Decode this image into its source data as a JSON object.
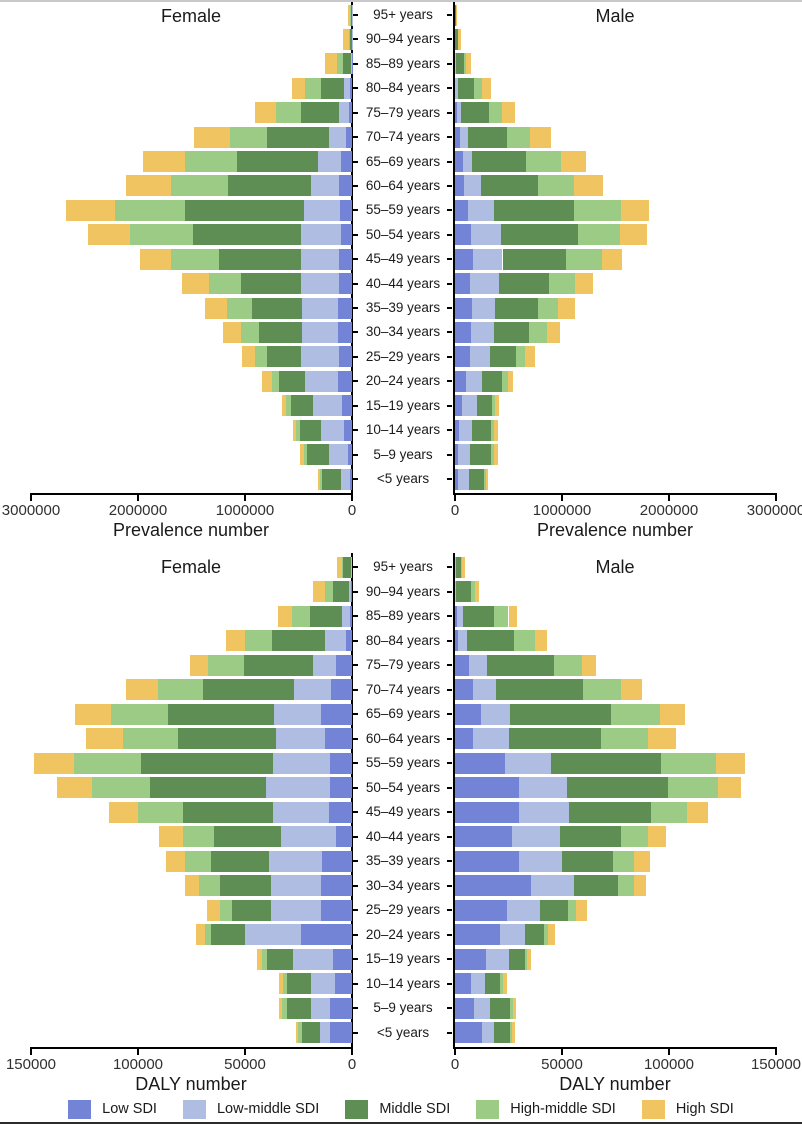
{
  "figure": {
    "top_border_color": "#c9c9c9",
    "bottom_border_color": "#2b2b2b",
    "panel_titles": {
      "left": "Female",
      "right": "Male"
    },
    "legend": [
      {
        "label": "Low SDI",
        "color": "#7384D7"
      },
      {
        "label": "Low-middle SDI",
        "color": "#AFBDE3"
      },
      {
        "label": "Middle SDI",
        "color": "#5F8E55"
      },
      {
        "label": "High-middle SDI",
        "color": "#9BCB85"
      },
      {
        "label": "High SDI",
        "color": "#F0C561"
      }
    ],
    "age_groups": [
      "95+ years",
      "90–94 years",
      "85–89 years",
      "80–84 years",
      "75–79 years",
      "70–74 years",
      "65–69 years",
      "60–64 years",
      "55–59 years",
      "50–54 years",
      "45–49 years",
      "40–44 years",
      "35–39 years",
      "30–34 years",
      "25–29 years",
      "20–24 years",
      "15–19 years",
      "10–14 years",
      "5–9 years",
      "<5 years"
    ]
  },
  "chart_data": [
    {
      "type": "bar",
      "subtype": "population-pyramid-stacked",
      "xlabel": "Prevalence number",
      "xlim": [
        0,
        3000000
      ],
      "axis_ticks": [
        0,
        1000000,
        2000000,
        3000000
      ],
      "axis_tick_labels": [
        "0",
        "1000000",
        "2000000",
        "3000000"
      ],
      "legend_position": "bottom",
      "grid": false,
      "categories": [
        "95+ years",
        "90–94 years",
        "85–89 years",
        "80–84 years",
        "75–79 years",
        "70–74 years",
        "65–69 years",
        "60–64 years",
        "55–59 years",
        "50–54 years",
        "45–49 years",
        "40–44 years",
        "35–39 years",
        "30–34 years",
        "25–29 years",
        "20–24 years",
        "15–19 years",
        "10–14 years",
        "5–9 years",
        "<5 years"
      ],
      "series_order": [
        "Low SDI",
        "Low-middle SDI",
        "Middle SDI",
        "High-middle SDI",
        "High SDI"
      ],
      "female_rows": [
        [
          1000,
          3000,
          12000,
          6000,
          18000
        ],
        [
          1000,
          3000,
          16000,
          5000,
          60000
        ],
        [
          3000,
          8000,
          72000,
          53000,
          119000
        ],
        [
          19000,
          56000,
          219000,
          141000,
          125000
        ],
        [
          25000,
          100000,
          354000,
          235000,
          194000
        ],
        [
          56000,
          157000,
          579000,
          351000,
          329000
        ],
        [
          103000,
          219000,
          751000,
          491000,
          385000
        ],
        [
          119000,
          266000,
          773000,
          532000,
          423000
        ],
        [
          110000,
          338000,
          1111000,
          657000,
          454000
        ],
        [
          103000,
          376000,
          1008000,
          589000,
          391000
        ],
        [
          125000,
          354000,
          767000,
          444000,
          291000
        ],
        [
          119000,
          360000,
          554000,
          307000,
          250000
        ],
        [
          135000,
          335000,
          463000,
          235000,
          210000
        ],
        [
          135000,
          329000,
          407000,
          163000,
          172000
        ],
        [
          125000,
          354000,
          313000,
          110000,
          125000
        ],
        [
          135000,
          303000,
          244000,
          69000,
          87000
        ],
        [
          94000,
          275000,
          204000,
          47000,
          38000
        ],
        [
          72000,
          219000,
          194000,
          40000,
          31000
        ],
        [
          40000,
          172000,
          204000,
          28000,
          38000
        ],
        [
          19000,
          87000,
          172000,
          25000,
          13000
        ]
      ],
      "male_rows": [
        [
          0,
          1000,
          4000,
          2000,
          5000
        ],
        [
          1000,
          2000,
          22000,
          6000,
          24000
        ],
        [
          2000,
          5000,
          80000,
          15000,
          48000
        ],
        [
          4000,
          20000,
          150000,
          75000,
          90000
        ],
        [
          15000,
          40000,
          266000,
          119000,
          125000
        ],
        [
          50000,
          69000,
          366000,
          213000,
          197000
        ],
        [
          72000,
          87000,
          507000,
          322000,
          232000
        ],
        [
          81000,
          163000,
          532000,
          338000,
          266000
        ],
        [
          125000,
          238000,
          751000,
          438000,
          263000
        ],
        [
          150000,
          282000,
          720000,
          391000,
          250000
        ],
        [
          172000,
          272000,
          594000,
          338000,
          188000
        ],
        [
          141000,
          272000,
          470000,
          238000,
          169000
        ],
        [
          157000,
          219000,
          401000,
          188000,
          157000
        ],
        [
          150000,
          210000,
          335000,
          166000,
          116000
        ],
        [
          141000,
          188000,
          241000,
          81000,
          100000
        ],
        [
          100000,
          157000,
          181000,
          56000,
          44000
        ],
        [
          69000,
          135000,
          141000,
          25000,
          44000
        ],
        [
          38000,
          125000,
          176000,
          22000,
          40000
        ],
        [
          31000,
          110000,
          197000,
          22000,
          40000
        ],
        [
          25000,
          106000,
          144000,
          16000,
          22000
        ]
      ]
    },
    {
      "type": "bar",
      "subtype": "population-pyramid-stacked",
      "xlabel": "DALY number",
      "xlim": [
        0,
        150000
      ],
      "axis_ticks": [
        0,
        50000,
        100000,
        150000
      ],
      "axis_tick_labels": [
        "0",
        "50000",
        "100000",
        "150000"
      ],
      "legend_position": "bottom",
      "grid": false,
      "categories": [
        "95+ years",
        "90–94 years",
        "85–89 years",
        "80–84 years",
        "75–79 years",
        "70–74 years",
        "65–69 years",
        "60–64 years",
        "55–59 years",
        "50–54 years",
        "45–49 years",
        "40–44 years",
        "35–39 years",
        "30–34 years",
        "25–29 years",
        "20–24 years",
        "15–19 years",
        "10–14 years",
        "5–9 years",
        "<5 years"
      ],
      "series_order": [
        "Low SDI",
        "Low-middle SDI",
        "Middle SDI",
        "High-middle SDI",
        "High SDI"
      ],
      "female_rows": [
        [
          0,
          400,
          3600,
          500,
          2500
        ],
        [
          300,
          1200,
          7200,
          3900,
          5800
        ],
        [
          1000,
          3900,
          14600,
          8600,
          6300
        ],
        [
          2700,
          9700,
          25100,
          12500,
          9100
        ],
        [
          7400,
          11000,
          32100,
          16800,
          8300
        ],
        [
          9700,
          17200,
          42600,
          21200,
          14900
        ],
        [
          14400,
          22200,
          49500,
          26600,
          16800
        ],
        [
          12500,
          23000,
          45900,
          25400,
          17700
        ],
        [
          10500,
          26600,
          61400,
          31300,
          18800
        ],
        [
          10500,
          29800,
          54100,
          27100,
          16300
        ],
        [
          10700,
          26000,
          42200,
          21200,
          13300
        ],
        [
          7400,
          25900,
          31300,
          14400,
          11400
        ],
        [
          14000,
          24800,
          26900,
          12200,
          9100
        ],
        [
          14700,
          23200,
          23800,
          9900,
          6600
        ],
        [
          14400,
          23500,
          18300,
          5600,
          5800
        ],
        [
          23800,
          26200,
          15700,
          3100,
          3900
        ],
        [
          8900,
          18800,
          11800,
          2400,
          2400
        ],
        [
          8100,
          11000,
          11400,
          1900,
          1900
        ],
        [
          10500,
          8600,
          11400,
          2200,
          1300
        ],
        [
          10500,
          4400,
          8500,
          1700,
          1100
        ]
      ],
      "male_rows": [
        [
          0,
          300,
          2400,
          700,
          1300
        ],
        [
          200,
          500,
          6700,
          1900,
          1900
        ],
        [
          800,
          3100,
          14400,
          6700,
          3900
        ],
        [
          1600,
          3900,
          22200,
          9900,
          5500
        ],
        [
          6700,
          8100,
          31600,
          13000,
          6700
        ],
        [
          8300,
          11000,
          40700,
          17500,
          9900
        ],
        [
          12100,
          13500,
          47300,
          22700,
          11800
        ],
        [
          8600,
          16500,
          43100,
          22200,
          13000
        ],
        [
          23500,
          21200,
          51400,
          25700,
          13500
        ],
        [
          29800,
          22400,
          47300,
          23200,
          11000
        ],
        [
          29800,
          23500,
          38100,
          17200,
          9400
        ],
        [
          26600,
          22400,
          28500,
          12800,
          8300
        ],
        [
          29800,
          20400,
          23500,
          9900,
          7400
        ],
        [
          35300,
          20100,
          20700,
          7500,
          5800
        ],
        [
          24300,
          15400,
          13200,
          3600,
          5200
        ],
        [
          20800,
          12100,
          8900,
          1600,
          3100
        ],
        [
          14600,
          10500,
          7400,
          1300,
          1900
        ],
        [
          7400,
          6700,
          7100,
          1300,
          1900
        ],
        [
          9100,
          7100,
          9700,
          1000,
          1400
        ],
        [
          12500,
          5500,
          7800,
          900,
          1400
        ]
      ]
    }
  ]
}
